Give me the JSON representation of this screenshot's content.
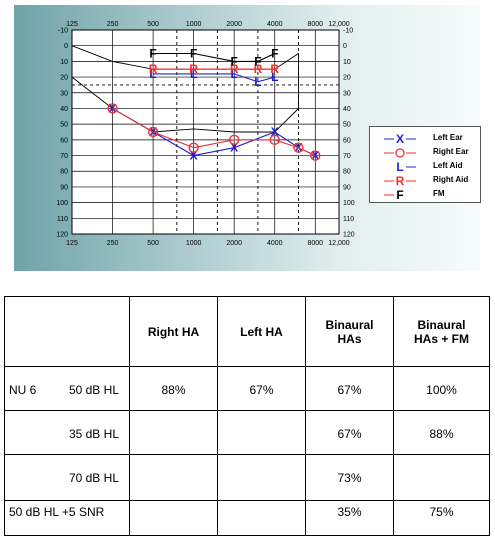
{
  "audiogram": {
    "frequency_labels": [
      "125",
      "250",
      "500",
      "1000",
      "2000",
      "4000",
      "8000",
      "12,000"
    ],
    "db_labels": [
      "-10",
      "0",
      "10",
      "20",
      "30",
      "40",
      "50",
      "60",
      "70",
      "80",
      "90",
      "100",
      "110",
      "120"
    ],
    "colors": {
      "left": "#1f1fd0",
      "right": "#e8333a",
      "aid_right": "#ff2a2a",
      "aid_left": "#1f1fd0",
      "fm": "#000000"
    }
  },
  "chart_data": {
    "type": "line",
    "x_scale": "log",
    "y_reversed": true,
    "ylim": [
      -10,
      120
    ],
    "grid": true,
    "series": [
      {
        "name": "Left Ear",
        "symbol": "X",
        "points": [
          [
            250,
            40
          ],
          [
            500,
            55
          ],
          [
            1000,
            70
          ],
          [
            2000,
            65
          ],
          [
            4000,
            55
          ],
          [
            6000,
            65
          ],
          [
            8000,
            70
          ]
        ]
      },
      {
        "name": "Right Ear",
        "symbol": "O",
        "points": [
          [
            250,
            40
          ],
          [
            500,
            55
          ],
          [
            1000,
            65
          ],
          [
            2000,
            60
          ],
          [
            4000,
            60
          ],
          [
            6000,
            65
          ],
          [
            8000,
            70
          ]
        ]
      },
      {
        "name": "Left Aid",
        "symbol": "L",
        "points": [
          [
            500,
            18
          ],
          [
            1000,
            18
          ],
          [
            2000,
            18
          ],
          [
            3000,
            23
          ],
          [
            4000,
            20
          ]
        ]
      },
      {
        "name": "Right Aid",
        "symbol": "R",
        "points": [
          [
            500,
            15
          ],
          [
            1000,
            15
          ],
          [
            2000,
            15
          ],
          [
            3000,
            15
          ],
          [
            4000,
            15
          ]
        ]
      },
      {
        "name": "FM",
        "symbol": "F",
        "points": [
          [
            500,
            5
          ],
          [
            1000,
            5
          ],
          [
            2000,
            10
          ],
          [
            3000,
            10
          ],
          [
            4000,
            5
          ]
        ]
      }
    ],
    "legend": [
      {
        "symbol": "X",
        "label": "Left Ear"
      },
      {
        "symbol": "O",
        "label": "Right Ear"
      },
      {
        "symbol": "L",
        "label": "Left Aid"
      },
      {
        "symbol": "R",
        "label": "Right Aid"
      },
      {
        "symbol": "F",
        "label": "FM"
      }
    ],
    "legend_position": "right"
  },
  "table": {
    "headers": [
      "Right HA",
      "Left HA",
      "Binaural HAs",
      "Binaural HAs + FM"
    ],
    "rows": [
      {
        "test": "NU 6",
        "level": "50 dB HL",
        "values": [
          "88%",
          "67%",
          "67%",
          "100%"
        ]
      },
      {
        "test": "",
        "level": "35 dB HL",
        "values": [
          "",
          "",
          "67%",
          "88%"
        ]
      },
      {
        "test": "",
        "level": "70 dB HL",
        "values": [
          "",
          "",
          "73%",
          ""
        ]
      },
      {
        "test": "",
        "level": "50 dB HL +5 SNR",
        "values": [
          "",
          "",
          "35%",
          "75%"
        ]
      }
    ]
  }
}
